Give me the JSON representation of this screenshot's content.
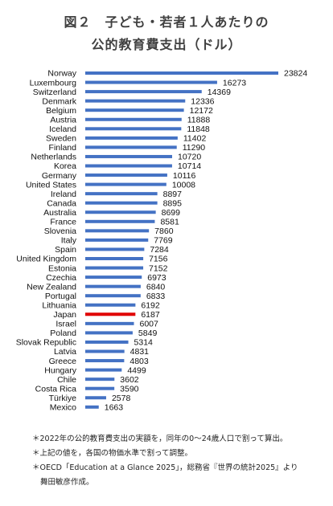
{
  "title_line1": "図２　子ども・若者１人あたりの",
  "title_line2": "公的教育費支出（ドル）",
  "chart_data": {
    "type": "bar",
    "orientation": "horizontal",
    "categories": [
      "Norway",
      "Luxembourg",
      "Switzerland",
      "Denmark",
      "Belgium",
      "Austria",
      "Iceland",
      "Sweden",
      "Finland",
      "Netherlands",
      "Korea",
      "Germany",
      "United States",
      "Ireland",
      "Canada",
      "Australia",
      "France",
      "Slovenia",
      "Italy",
      "Spain",
      "United Kingdom",
      "Estonia",
      "Czechia",
      "New Zealand",
      "Portugal",
      "Lithuania",
      "Japan",
      "Israel",
      "Poland",
      "Slovak Republic",
      "Latvia",
      "Greece",
      "Hungary",
      "Chile",
      "Costa Rica",
      "Türkiye",
      "Mexico"
    ],
    "values": [
      23824,
      16273,
      14369,
      12336,
      12172,
      11888,
      11848,
      11402,
      11290,
      10720,
      10714,
      10116,
      10008,
      8897,
      8895,
      8699,
      8581,
      7860,
      7769,
      7284,
      7156,
      7152,
      6973,
      6840,
      6833,
      6192,
      6187,
      6007,
      5849,
      5314,
      4831,
      4803,
      4499,
      3602,
      3590,
      2578,
      1663
    ],
    "highlight": "Japan",
    "colors": {
      "bar": "#4472c4",
      "highlight": "#e00000"
    },
    "title": "",
    "xlabel": "",
    "ylabel": ""
  },
  "notes": [
    "＊2022年の公的教育費支出の実額を，同年の0～24歳人口で割って算出。",
    "＊上記の値を，各国の物価水準で割って調整。",
    "＊OECD「Education at a Glance 2025」，総務省『世界の統計2025』より",
    "舞田敏彦作成。"
  ]
}
